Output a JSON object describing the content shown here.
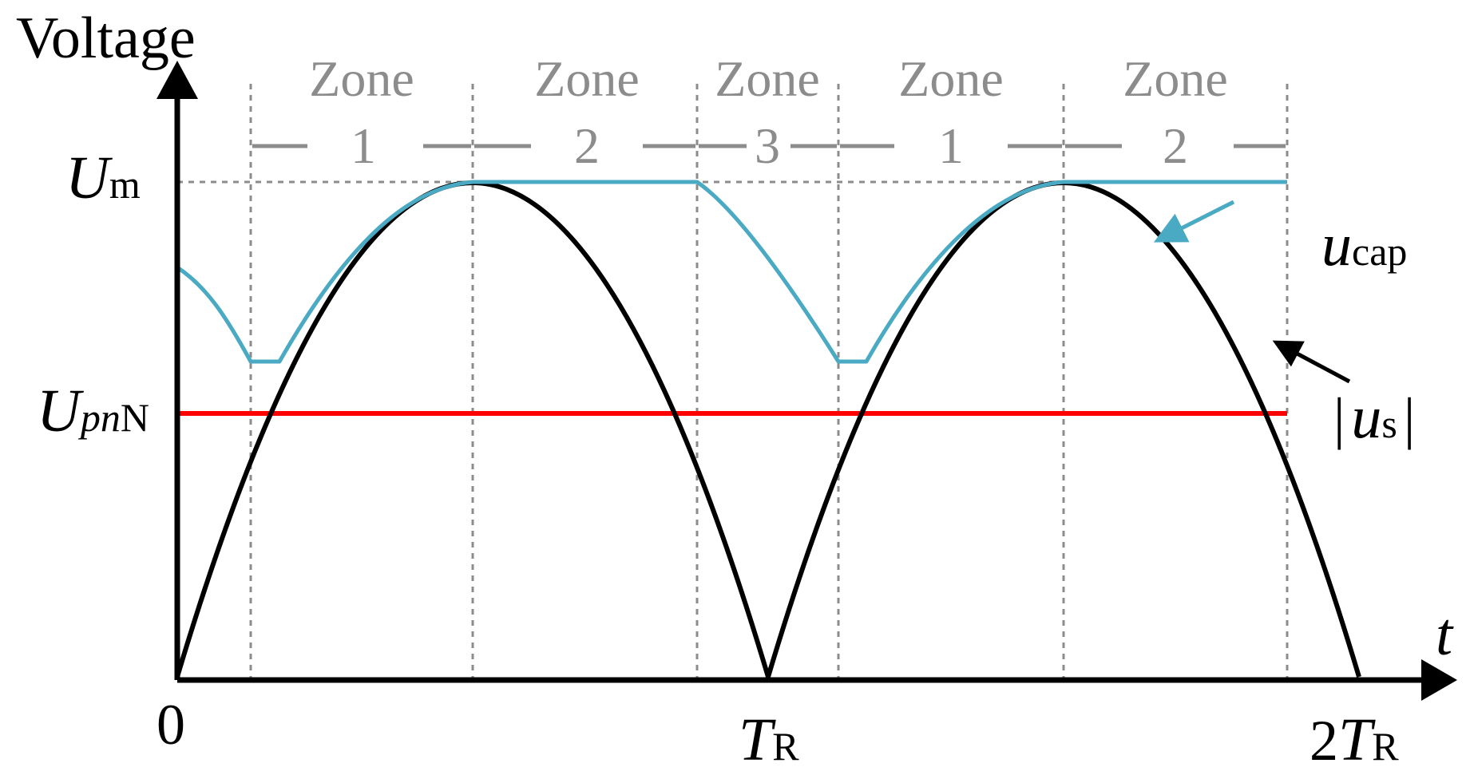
{
  "y_axis": {
    "label": "Voltage"
  },
  "x_axis": {
    "label": "t",
    "ticks": {
      "zero": "0",
      "t_r": "T",
      "t_r_sub": "R",
      "two_t_r_num": "2",
      "two_t_r": "T",
      "two_t_r_sub": "R"
    }
  },
  "levels": {
    "um": {
      "main": "U",
      "sub": "m"
    },
    "upn": {
      "main": "U",
      "sub_it": "pn",
      "sub": "N"
    }
  },
  "zones": [
    {
      "word": "Zone",
      "num": "1"
    },
    {
      "word": "Zone",
      "num": "2"
    },
    {
      "word": "Zone",
      "num": "3"
    },
    {
      "word": "Zone",
      "num": "1"
    },
    {
      "word": "Zone",
      "num": "2"
    }
  ],
  "labels": {
    "ucap": {
      "main": "u",
      "sub": "cap"
    },
    "us": {
      "bar_left": "|",
      "main": "u",
      "sub": "s",
      "bar_right": "|"
    }
  },
  "colors": {
    "axis": "#000000",
    "us": "#000000",
    "ucap": "#4aaac4",
    "upn": "#ff0000",
    "grid": "#8c8c8c",
    "zone_text": "#8c8c8c"
  }
}
